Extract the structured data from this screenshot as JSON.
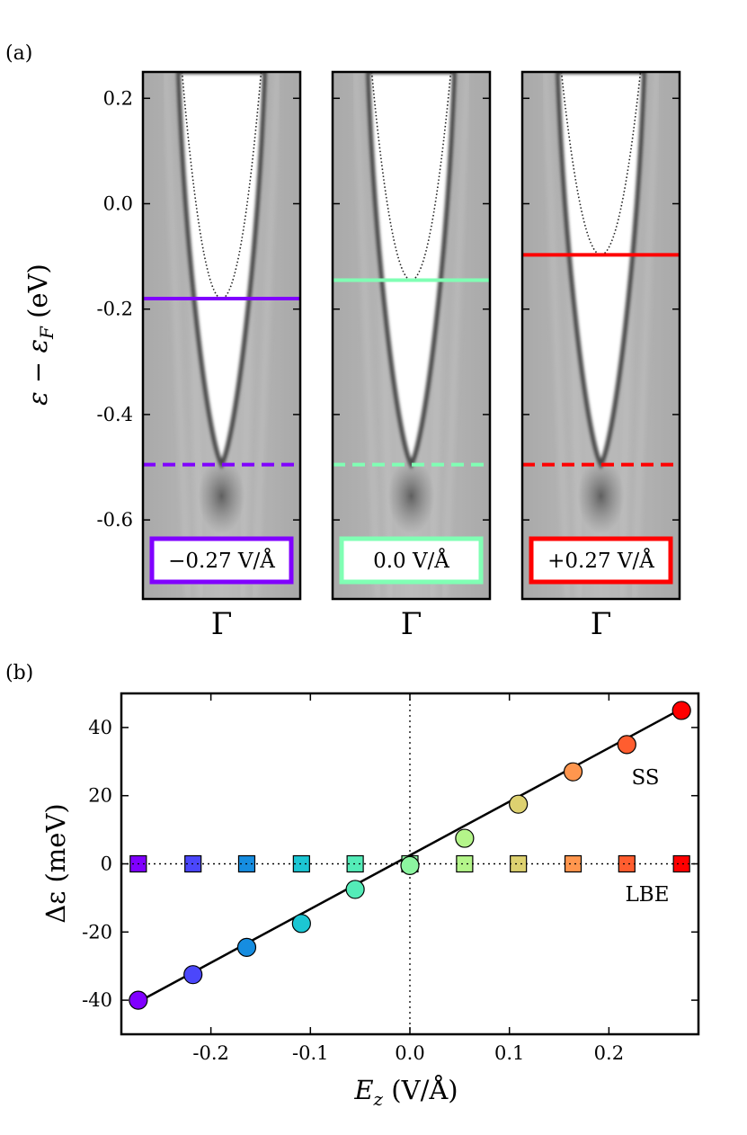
{
  "chart_data": [
    {
      "type": "heatmap",
      "panel_label": "(a)",
      "ylabel_main": "ε − ε",
      "ylabel_sub": "F",
      "ylabel_unit": " (eV)",
      "ylim": [
        -0.75,
        0.25
      ],
      "yticks": [
        {
          "value": 0.2,
          "label": "0.2"
        },
        {
          "value": 0.0,
          "label": "0.0"
        },
        {
          "value": -0.2,
          "label": "-0.2"
        },
        {
          "value": -0.4,
          "label": "-0.4"
        },
        {
          "value": -0.6,
          "label": "-0.6"
        }
      ],
      "x_tick_label": "Γ",
      "panels": [
        {
          "field_label": "−0.27 V/Å",
          "color": "#8000ff",
          "ss_level": -0.18,
          "lbe_level": -0.495
        },
        {
          "field_label": "0.0 V/Å",
          "color": "#80ffb4",
          "ss_level": -0.145,
          "lbe_level": -0.495
        },
        {
          "field_label": "+0.27 V/Å",
          "color": "#ff0000",
          "ss_level": -0.097,
          "lbe_level": -0.495
        }
      ]
    },
    {
      "type": "scatter",
      "panel_label": "(b)",
      "xlabel_main": "E",
      "xlabel_sub": "z",
      "xlabel_unit": " (V/Å)",
      "ylabel": "Δε (meV)",
      "xlim": [
        -0.29,
        0.29
      ],
      "ylim": [
        -50,
        50
      ],
      "xticks": [
        {
          "value": -0.2,
          "label": "-0.2"
        },
        {
          "value": -0.1,
          "label": "-0.1"
        },
        {
          "value": 0.0,
          "label": "0.0"
        },
        {
          "value": 0.1,
          "label": "0.1"
        },
        {
          "value": 0.2,
          "label": "0.2"
        }
      ],
      "yticks": [
        {
          "value": 40,
          "label": "40"
        },
        {
          "value": 20,
          "label": "20"
        },
        {
          "value": 0,
          "label": "0"
        },
        {
          "value": -20,
          "label": "-20"
        },
        {
          "value": -40,
          "label": "-40"
        }
      ],
      "fit_line": {
        "x": [
          -0.273,
          0.273
        ],
        "y": [
          -40.5,
          45.5
        ]
      },
      "series": [
        {
          "name": "SS",
          "marker": "circle",
          "x": [
            -0.273,
            -0.218,
            -0.164,
            -0.109,
            -0.055,
            0.0,
            0.055,
            0.109,
            0.164,
            0.218,
            0.273
          ],
          "y": [
            -40,
            -32.5,
            -24.5,
            -17.5,
            -7.5,
            -0.5,
            7.5,
            17.5,
            27,
            35,
            45
          ],
          "colors": [
            "#8000ff",
            "#4b47fb",
            "#168de0",
            "#1cc6d3",
            "#54ecb8",
            "#8cf5a0",
            "#b4f58a",
            "#ddd170",
            "#ff964e",
            "#ff5d2f",
            "#ff0000"
          ]
        },
        {
          "name": "LBE",
          "marker": "square",
          "x": [
            -0.273,
            -0.218,
            -0.164,
            -0.109,
            -0.055,
            0.0,
            0.055,
            0.109,
            0.164,
            0.218,
            0.273
          ],
          "y": [
            0,
            0,
            0,
            0,
            0,
            0,
            0,
            0,
            0,
            0,
            0
          ],
          "colors": [
            "#8000ff",
            "#4b47fb",
            "#168de0",
            "#1cc6d3",
            "#54ecb8",
            "#8cf5a0",
            "#b4f58a",
            "#ddd170",
            "#ff964e",
            "#ff5d2f",
            "#ff0000"
          ]
        }
      ]
    }
  ]
}
